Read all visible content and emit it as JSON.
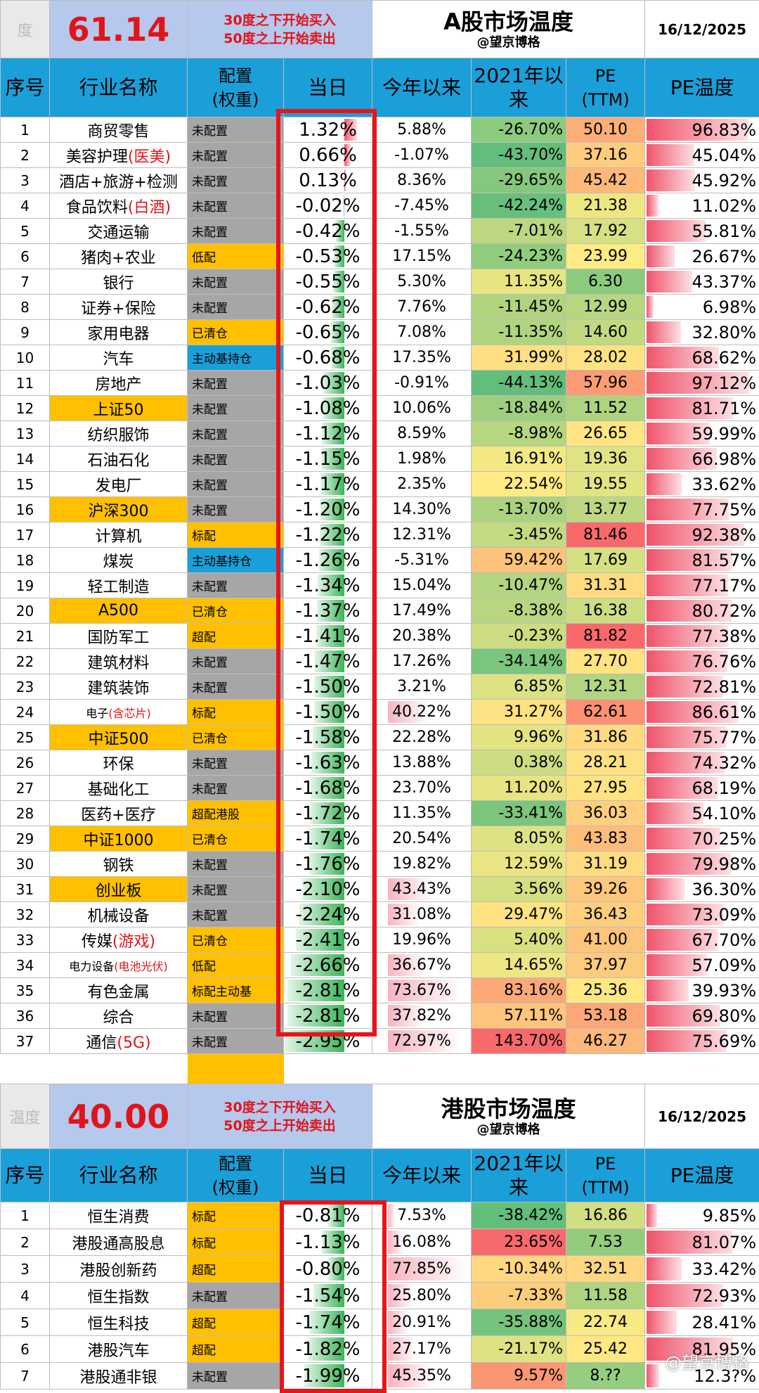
{
  "a_share": {
    "score_label": "度",
    "score": "61.14",
    "note_buy": "30度之下开始买入",
    "note_sell": "50度之上开始卖出",
    "title": "A股市场温度",
    "author": "@望京博格",
    "date": "16/12/2025",
    "headers": {
      "idx": "序号",
      "name": "行业名称",
      "cfg_line1": "配置",
      "cfg_line2": "(权重)",
      "day": "当日",
      "ytd": "今年以来",
      "since2021": "2021年以来",
      "pe_line1": "PE",
      "pe_line2": "(TTM)",
      "pe_temp": "PE温度"
    },
    "rows": [
      {
        "idx": "1",
        "name": "商贸零售",
        "cfg": "未配置",
        "day": "1.32%",
        "ytd": "5.88%",
        "since2021": "-26.70%",
        "pe": "50.10",
        "pe_temp": "96.83%"
      },
      {
        "idx": "2",
        "name": "美容护理",
        "name_red": "(医美)",
        "cfg": "未配置",
        "day": "0.66%",
        "ytd": "-1.07%",
        "since2021": "-43.70%",
        "pe": "37.16",
        "pe_temp": "45.04%"
      },
      {
        "idx": "3",
        "name": "酒店+旅游+检测",
        "cfg": "未配置",
        "day": "0.13%",
        "ytd": "8.36%",
        "since2021": "-29.65%",
        "pe": "45.42",
        "pe_temp": "45.92%"
      },
      {
        "idx": "4",
        "name": "食品饮料",
        "name_red": "(白酒)",
        "cfg": "未配置",
        "day": "-0.02%",
        "ytd": "-7.45%",
        "since2021": "-42.24%",
        "pe": "21.38",
        "pe_temp": "11.02%"
      },
      {
        "idx": "5",
        "name": "交通运输",
        "cfg": "未配置",
        "day": "-0.42%",
        "ytd": "-1.55%",
        "since2021": "-7.01%",
        "pe": "17.92",
        "pe_temp": "55.81%"
      },
      {
        "idx": "6",
        "name": "猪肉+农业",
        "cfg": "低配",
        "day": "-0.53%",
        "ytd": "17.15%",
        "since2021": "-24.23%",
        "pe": "23.99",
        "pe_temp": "26.67%"
      },
      {
        "idx": "7",
        "name": "银行",
        "cfg": "未配置",
        "day": "-0.55%",
        "ytd": "5.30%",
        "since2021": "11.35%",
        "pe": "6.30",
        "pe_temp": "43.37%"
      },
      {
        "idx": "8",
        "name": "证券+保险",
        "cfg": "未配置",
        "day": "-0.62%",
        "ytd": "7.76%",
        "since2021": "-11.45%",
        "pe": "12.99",
        "pe_temp": "6.98%"
      },
      {
        "idx": "9",
        "name": "家用电器",
        "cfg": "已清仓",
        "day": "-0.65%",
        "ytd": "7.08%",
        "since2021": "-11.35%",
        "pe": "14.60",
        "pe_temp": "32.80%"
      },
      {
        "idx": "10",
        "name": "汽车",
        "cfg": "主动基持仓",
        "day": "-0.68%",
        "ytd": "17.35%",
        "since2021": "31.99%",
        "pe": "28.02",
        "pe_temp": "68.62%"
      },
      {
        "idx": "11",
        "name": "房地产",
        "cfg": "未配置",
        "day": "-1.03%",
        "ytd": "-0.91%",
        "since2021": "-44.13%",
        "pe": "57.96",
        "pe_temp": "97.12%"
      },
      {
        "idx": "12",
        "name": "上证50",
        "cfg": "未配置",
        "day": "-1.08%",
        "ytd": "10.06%",
        "since2021": "-18.84%",
        "pe": "11.52",
        "pe_temp": "81.71%"
      },
      {
        "idx": "13",
        "name": "纺织服饰",
        "cfg": "未配置",
        "day": "-1.12%",
        "ytd": "8.59%",
        "since2021": "-8.98%",
        "pe": "26.65",
        "pe_temp": "59.99%"
      },
      {
        "idx": "14",
        "name": "石油石化",
        "cfg": "未配置",
        "day": "-1.15%",
        "ytd": "1.98%",
        "since2021": "16.91%",
        "pe": "19.36",
        "pe_temp": "66.98%"
      },
      {
        "idx": "15",
        "name": "发电厂",
        "cfg": "未配置",
        "day": "-1.17%",
        "ytd": "2.35%",
        "since2021": "22.54%",
        "pe": "19.55",
        "pe_temp": "33.62%"
      },
      {
        "idx": "16",
        "name": "沪深300",
        "cfg": "未配置",
        "day": "-1.20%",
        "ytd": "14.30%",
        "since2021": "-13.70%",
        "pe": "13.77",
        "pe_temp": "77.75%"
      },
      {
        "idx": "17",
        "name": "计算机",
        "cfg": "标配",
        "day": "-1.22%",
        "ytd": "12.31%",
        "since2021": "-3.45%",
        "pe": "81.46",
        "pe_temp": "92.38%"
      },
      {
        "idx": "18",
        "name": "煤炭",
        "cfg": "主动基持仓",
        "day": "-1.26%",
        "ytd": "-5.31%",
        "since2021": "59.42%",
        "pe": "17.69",
        "pe_temp": "81.57%"
      },
      {
        "idx": "19",
        "name": "轻工制造",
        "cfg": "未配置",
        "day": "-1.34%",
        "ytd": "15.04%",
        "since2021": "-10.47%",
        "pe": "31.31",
        "pe_temp": "77.17%"
      },
      {
        "idx": "20",
        "name": "A500",
        "cfg": "已清仓",
        "day": "-1.37%",
        "ytd": "17.49%",
        "since2021": "-8.38%",
        "pe": "16.38",
        "pe_temp": "80.72%"
      },
      {
        "idx": "21",
        "name": "国防军工",
        "cfg": "超配",
        "day": "-1.41%",
        "ytd": "20.38%",
        "since2021": "-0.23%",
        "pe": "81.82",
        "pe_temp": "77.38%"
      },
      {
        "idx": "22",
        "name": "建筑材料",
        "cfg": "未配置",
        "day": "-1.47%",
        "ytd": "17.26%",
        "since2021": "-34.14%",
        "pe": "27.70",
        "pe_temp": "76.76%"
      },
      {
        "idx": "23",
        "name": "建筑装饰",
        "cfg": "未配置",
        "day": "-1.50%",
        "ytd": "3.21%",
        "since2021": "6.85%",
        "pe": "12.31",
        "pe_temp": "72.81%"
      },
      {
        "idx": "24",
        "name": "电子",
        "name_red": "(含芯片)",
        "cfg": "标配",
        "day": "-1.50%",
        "ytd": "40.22%",
        "since2021": "31.27%",
        "pe": "62.61",
        "pe_temp": "86.61%"
      },
      {
        "idx": "25",
        "name": "中证500",
        "cfg": "已清仓",
        "day": "-1.58%",
        "ytd": "22.28%",
        "since2021": "9.96%",
        "pe": "31.86",
        "pe_temp": "75.77%"
      },
      {
        "idx": "26",
        "name": "环保",
        "cfg": "未配置",
        "day": "-1.63%",
        "ytd": "13.88%",
        "since2021": "0.38%",
        "pe": "28.21",
        "pe_temp": "74.32%"
      },
      {
        "idx": "27",
        "name": "基础化工",
        "cfg": "未配置",
        "day": "-1.68%",
        "ytd": "23.70%",
        "since2021": "11.20%",
        "pe": "27.95",
        "pe_temp": "68.19%"
      },
      {
        "idx": "28",
        "name": "医药+医疗",
        "cfg": "超配港股",
        "day": "-1.72%",
        "ytd": "11.35%",
        "since2021": "-33.41%",
        "pe": "36.03",
        "pe_temp": "54.10%"
      },
      {
        "idx": "29",
        "name": "中证1000",
        "cfg": "已清仓",
        "day": "-1.74%",
        "ytd": "20.54%",
        "since2021": "8.05%",
        "pe": "43.83",
        "pe_temp": "70.25%"
      },
      {
        "idx": "30",
        "name": "钢铁",
        "cfg": "未配置",
        "day": "-1.76%",
        "ytd": "19.82%",
        "since2021": "12.59%",
        "pe": "31.19",
        "pe_temp": "79.98%"
      },
      {
        "idx": "31",
        "name": "创业板",
        "cfg": "未配置",
        "day": "-2.10%",
        "ytd": "43.43%",
        "since2021": "3.56%",
        "pe": "39.26",
        "pe_temp": "36.30%"
      },
      {
        "idx": "32",
        "name": "机械设备",
        "cfg": "未配置",
        "day": "-2.24%",
        "ytd": "31.08%",
        "since2021": "29.47%",
        "pe": "36.43",
        "pe_temp": "73.09%"
      },
      {
        "idx": "33",
        "name": "传媒",
        "name_red": "(游戏)",
        "cfg": "已清仓",
        "day": "-2.41%",
        "ytd": "19.96%",
        "since2021": "5.40%",
        "pe": "41.00",
        "pe_temp": "67.70%"
      },
      {
        "idx": "34",
        "name": "电力设备",
        "name_red": "(电池光伏)",
        "cfg": "低配",
        "day": "-2.66%",
        "ytd": "36.67%",
        "since2021": "14.65%",
        "pe": "37.97",
        "pe_temp": "57.09%"
      },
      {
        "idx": "35",
        "name": "有色金属",
        "cfg": "标配主动基",
        "day": "-2.81%",
        "ytd": "73.67%",
        "since2021": "83.16%",
        "pe": "25.36",
        "pe_temp": "39.93%"
      },
      {
        "idx": "36",
        "name": "综合",
        "cfg": "未配置",
        "day": "-2.81%",
        "ytd": "37.82%",
        "since2021": "57.11%",
        "pe": "53.18",
        "pe_temp": "69.80%"
      },
      {
        "idx": "37",
        "name": "通信",
        "name_red": "(5G)",
        "cfg": "未配置",
        "day": "-2.95%",
        "ytd": "72.97%",
        "since2021": "143.70%",
        "pe": "46.27",
        "pe_temp": "75.69%"
      }
    ]
  },
  "hk_share": {
    "score_label": "温度",
    "score": "40.00",
    "note_buy": "30度之下开始买入",
    "note_sell": "50度之上开始卖出",
    "title": "港股市场温度",
    "author": "@望京博格",
    "date": "16/12/2025",
    "headers": {
      "idx": "序号",
      "name": "行业名称",
      "cfg_line1": "配置",
      "cfg_line2": "(权重)",
      "day": "当日",
      "ytd": "今年以来",
      "since2021": "2021年以来",
      "pe_line1": "PE",
      "pe_line2": "(TTM)",
      "pe_temp": "PE温度"
    },
    "rows": [
      {
        "idx": "1",
        "name": "恒生消费",
        "cfg": "标配",
        "day": "-0.81%",
        "ytd": "7.53%",
        "since2021": "-38.42%",
        "pe": "16.86",
        "pe_temp": "9.85%"
      },
      {
        "idx": "2",
        "name": "港股通高股息",
        "cfg": "标配",
        "day": "-1.13%",
        "ytd": "16.08%",
        "since2021": "23.65%",
        "pe": "7.53",
        "pe_temp": "81.07%"
      },
      {
        "idx": "3",
        "name": "港股创新药",
        "cfg": "超配",
        "day": "-0.80%",
        "ytd": "77.85%",
        "since2021": "-10.34%",
        "pe": "32.51",
        "pe_temp": "33.42%"
      },
      {
        "idx": "4",
        "name": "恒生指数",
        "cfg": "未配置",
        "day": "-1.54%",
        "ytd": "25.80%",
        "since2021": "-7.33%",
        "pe": "11.58",
        "pe_temp": "72.93%"
      },
      {
        "idx": "5",
        "name": "恒生科技",
        "cfg": "超配",
        "day": "-1.74%",
        "ytd": "20.91%",
        "since2021": "-35.88%",
        "pe": "22.74",
        "pe_temp": "28.41%"
      },
      {
        "idx": "6",
        "name": "港股汽车",
        "cfg": "超配",
        "day": "-1.82%",
        "ytd": "27.17%",
        "since2021": "-21.17%",
        "pe": "25.42",
        "pe_temp": "81.95%"
      },
      {
        "idx": "7",
        "name": "港股通非银",
        "cfg": "未配置",
        "day": "-1.99%",
        "ytd": "45.35%",
        "since2021": "9.57%",
        "pe": "8.??",
        "pe_temp": "12.3?%"
      }
    ]
  },
  "watermark": "@望京博格",
  "colors": {
    "header_blue": "#1a9fd9",
    "score_bg": "#b6c8ec",
    "highlight": "#ffc000",
    "cfg_gray": "#a6a6a6",
    "red_box": "#e8141b",
    "bar_green": "#39b55a",
    "bar_red": "#f0536a"
  }
}
